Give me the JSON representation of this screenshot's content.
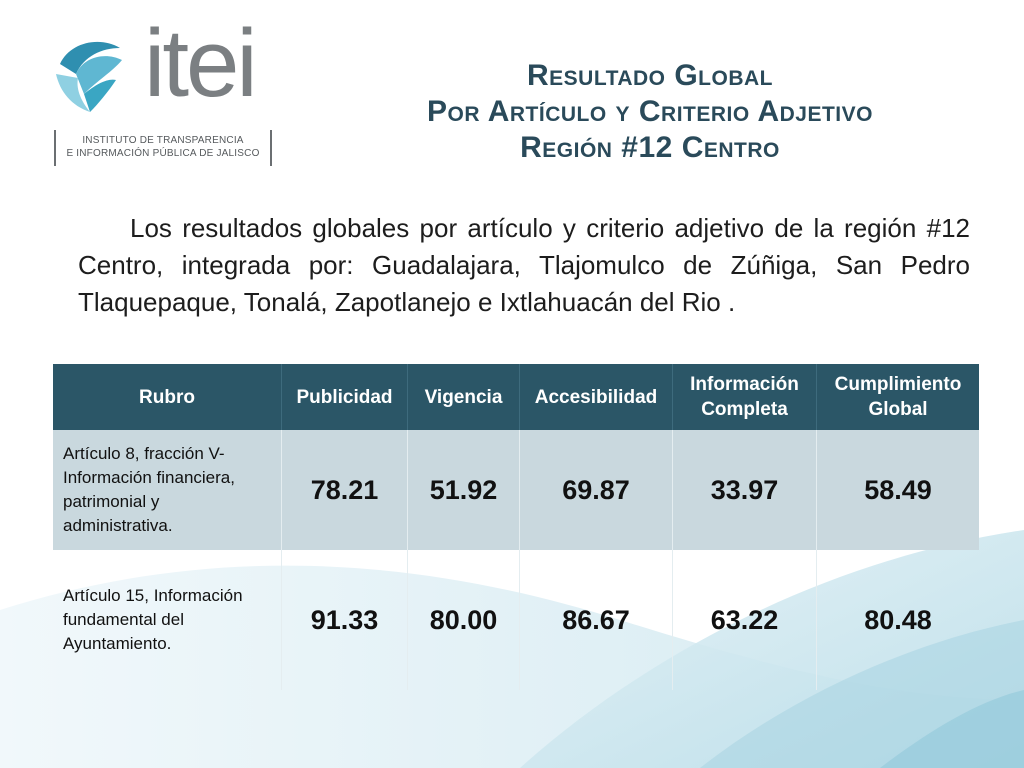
{
  "logo": {
    "wordmark": "itei",
    "subtitle_line1": "INSTITUTO DE TRANSPARENCIA",
    "subtitle_line2": "E INFORMACIÓN PÚBLICA DE JALISCO"
  },
  "title": {
    "line1": "Resultado Global",
    "line2": "Por Artículo y Criterio Adjetivo",
    "line3": "Región #12 Centro"
  },
  "paragraph": "Los resultados globales por artículo y criterio adjetivo de la región #12 Centro, integrada por: Guadalajara, Tlajomulco de Zúñiga, San Pedro Tlaquepaque, Tonalá, Zapotlanejo e Ixtlahuacán del Rio .",
  "table": {
    "headers": [
      "Rubro",
      "Publicidad",
      "Vigencia",
      "Accesibilidad",
      "Información Completa",
      "Cumplimiento Global"
    ],
    "rows": [
      {
        "label": "Artículo 8, fracción V- Información financiera, patrimonial y administrativa.",
        "values": [
          "78.21",
          "51.92",
          "69.87",
          "33.97",
          "58.49"
        ]
      },
      {
        "label": "Artículo 15, Información fundamental del Ayuntamiento.",
        "values": [
          "91.33",
          "80.00",
          "86.67",
          "63.22",
          "80.48"
        ]
      }
    ]
  },
  "colors": {
    "header_bg": "#2b5667",
    "row1_bg": "#c9d8de",
    "title": "#2a4a5a",
    "accent_teal": "#3aa6c3"
  }
}
